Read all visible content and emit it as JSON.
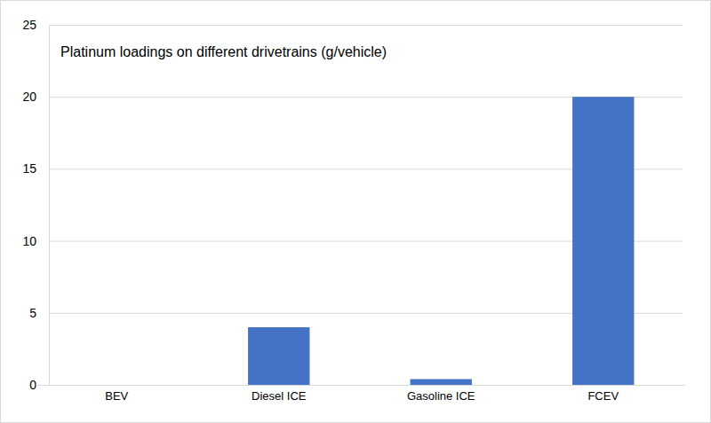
{
  "chart_data": {
    "type": "bar",
    "title": "Platinum loadings on different drivetrains (g/vehicle)",
    "categories": [
      "BEV",
      "Diesel ICE",
      "Gasoline ICE",
      "FCEV"
    ],
    "values": [
      0,
      4,
      0.4,
      20
    ],
    "color": "#4472c4",
    "ylim": [
      0,
      25
    ],
    "yticks": [
      0,
      5,
      10,
      15,
      20,
      25
    ],
    "grid": true
  }
}
